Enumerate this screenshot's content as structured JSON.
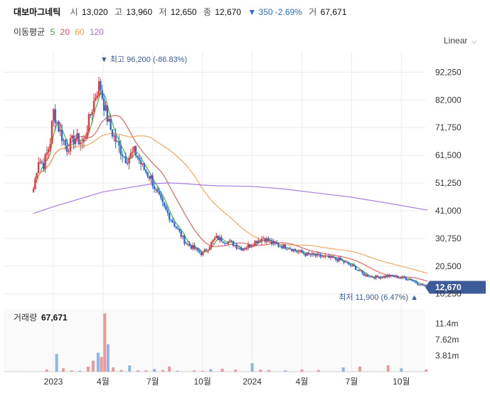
{
  "header": {
    "title": "대보마그네틱",
    "open_label": "시",
    "open": "13,020",
    "high_label": "고",
    "high": "13,960",
    "low_label": "저",
    "low": "12,650",
    "close_label": "종",
    "close": "12,670",
    "change": "▼ 350 -2.69%",
    "volume_label": "거",
    "volume": "67,671"
  },
  "ma_legend": {
    "label": "이동평균",
    "items": [
      {
        "period": "5",
        "color": "#3aa83a"
      },
      {
        "period": "20",
        "color": "#e05252"
      },
      {
        "period": "60",
        "color": "#f0a050"
      },
      {
        "period": "120",
        "color": "#a070d8"
      }
    ]
  },
  "scale_button": {
    "label": "Linear",
    "icon": "chevron-down-icon"
  },
  "colors": {
    "up": "#e0393e",
    "down": "#2b6cd4",
    "badge": "#3d5a99",
    "grid": "#ececec"
  },
  "chart_data": [
    {
      "type": "candlestick",
      "title": "",
      "x_tick_labels": [
        "2023",
        "4월",
        "7월",
        "10월",
        "2024",
        "4월",
        "7월",
        "10월"
      ],
      "x_ticks_month_index": [
        0,
        3,
        6,
        9,
        12,
        15,
        18,
        21
      ],
      "y_tick_labels": [
        "92,250",
        "82,000",
        "71,750",
        "61,500",
        "51,250",
        "41,000",
        "30,750",
        "20,500",
        "10,250"
      ],
      "y_ticks": [
        92250,
        82000,
        71750,
        61500,
        51250,
        41000,
        30750,
        20500,
        10250
      ],
      "ylim": [
        7800,
        100000
      ],
      "high_annotation": "▼ 최고 96,200 (-86.83%)",
      "high_value": 96200,
      "low_annotation": "최저 11,900 (6.47%) ▲",
      "low_value": 11900,
      "last_price_badge": "12,670",
      "last_price": 12670,
      "price_path_month_vs_close": [
        [
          -1.2,
          49000
        ],
        [
          -0.9,
          60000
        ],
        [
          -0.6,
          58000
        ],
        [
          -0.2,
          66000
        ],
        [
          0.0,
          78000
        ],
        [
          0.3,
          72000
        ],
        [
          0.8,
          64000
        ],
        [
          1.3,
          68000
        ],
        [
          1.8,
          66000
        ],
        [
          2.3,
          78000
        ],
        [
          2.6,
          85000
        ],
        [
          2.8,
          88000
        ],
        [
          3.1,
          79000
        ],
        [
          3.4,
          72000
        ],
        [
          3.9,
          65000
        ],
        [
          4.4,
          60000
        ],
        [
          4.9,
          63000
        ],
        [
          5.4,
          57000
        ],
        [
          5.9,
          53000
        ],
        [
          6.2,
          48000
        ],
        [
          6.6,
          43000
        ],
        [
          7.1,
          38000
        ],
        [
          7.6,
          33000
        ],
        [
          8.0,
          29000
        ],
        [
          8.5,
          27000
        ],
        [
          9.0,
          25000
        ],
        [
          9.4,
          28000
        ],
        [
          9.8,
          31000
        ],
        [
          10.3,
          30000
        ],
        [
          10.8,
          29000
        ],
        [
          11.3,
          27000
        ],
        [
          11.8,
          28000
        ],
        [
          12.3,
          30000
        ],
        [
          12.7,
          31000
        ],
        [
          13.2,
          29000
        ],
        [
          13.7,
          28000
        ],
        [
          14.2,
          27500
        ],
        [
          14.7,
          26000
        ],
        [
          15.2,
          25000
        ],
        [
          15.7,
          24500
        ],
        [
          16.2,
          24000
        ],
        [
          16.7,
          23500
        ],
        [
          17.2,
          23000
        ],
        [
          17.7,
          21500
        ],
        [
          18.2,
          20000
        ],
        [
          18.7,
          17500
        ],
        [
          19.2,
          16500
        ],
        [
          19.7,
          16500
        ],
        [
          20.2,
          17000
        ],
        [
          20.7,
          16500
        ],
        [
          21.2,
          16000
        ],
        [
          21.6,
          15500
        ],
        [
          22.0,
          14000
        ],
        [
          22.3,
          13500
        ],
        [
          22.6,
          12670
        ]
      ],
      "series": [
        {
          "name": "5",
          "color": "#3aa83a"
        },
        {
          "name": "20",
          "color": "#e05252"
        },
        {
          "name": "60",
          "color": "#f0a050"
        },
        {
          "name": "120",
          "color": "#a070d8",
          "points_month_vs_value": [
            [
              -1.2,
              40000
            ],
            [
              0.0,
              42500
            ],
            [
              3.0,
              48000
            ],
            [
              6.0,
              51000
            ],
            [
              7.0,
              51300
            ],
            [
              8.0,
              51000
            ],
            [
              9.0,
              50500
            ],
            [
              10.0,
              50200
            ],
            [
              12.0,
              50000
            ],
            [
              14.0,
              49000
            ],
            [
              16.0,
              47500
            ],
            [
              18.0,
              46000
            ],
            [
              20.0,
              44000
            ],
            [
              22.6,
              41200
            ]
          ]
        }
      ]
    },
    {
      "type": "bar",
      "title": "거래량",
      "last_volume_label": "67,671",
      "y_tick_labels": [
        "11.4m",
        "7.62m",
        "3.81m"
      ],
      "y_ticks": [
        11.4,
        7.62,
        3.81
      ],
      "ylim": [
        0,
        14.5
      ],
      "unit": "m",
      "bar_values_by_month": [
        [
          -0.4,
          0.5
        ],
        [
          0.2,
          4.2
        ],
        [
          0.6,
          0.8
        ],
        [
          1.1,
          0.3
        ],
        [
          1.6,
          0.2
        ],
        [
          2.1,
          1.2
        ],
        [
          2.4,
          2.6
        ],
        [
          2.7,
          4.5
        ],
        [
          2.9,
          3.5
        ],
        [
          3.1,
          13.8
        ],
        [
          3.3,
          6.5
        ],
        [
          3.6,
          1.0
        ],
        [
          4.1,
          0.4
        ],
        [
          4.6,
          1.5
        ],
        [
          5.1,
          0.3
        ],
        [
          5.6,
          0.3
        ],
        [
          6.1,
          0.6
        ],
        [
          6.6,
          0.4
        ],
        [
          7.0,
          1.2
        ],
        [
          7.5,
          0.2
        ],
        [
          8.5,
          0.3
        ],
        [
          9.0,
          0.2
        ],
        [
          9.5,
          0.6
        ],
        [
          10.2,
          0.7
        ],
        [
          11.0,
          0.5
        ],
        [
          12.0,
          2.0
        ],
        [
          12.5,
          0.5
        ],
        [
          13.0,
          0.4
        ],
        [
          14.0,
          0.3
        ],
        [
          15.0,
          0.5
        ],
        [
          16.0,
          0.4
        ],
        [
          17.5,
          1.0
        ],
        [
          18.5,
          1.2
        ],
        [
          20.2,
          1.5
        ],
        [
          21.0,
          0.8
        ],
        [
          22.5,
          0.5
        ]
      ]
    }
  ]
}
